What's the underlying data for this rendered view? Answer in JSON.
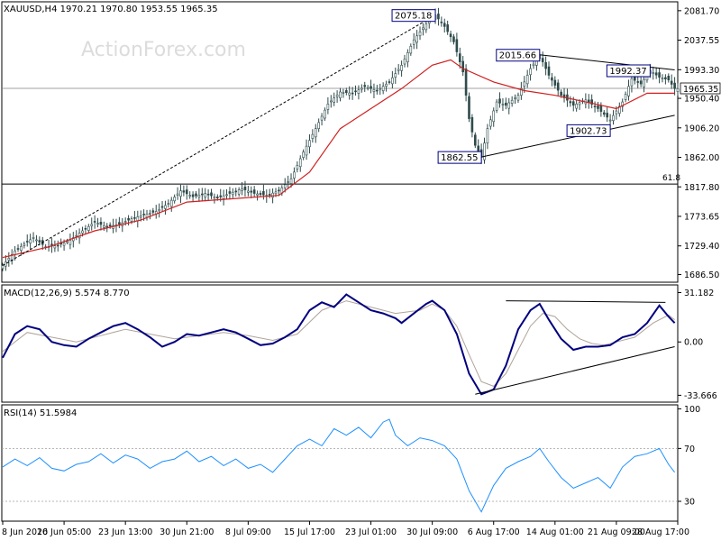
{
  "watermark": "ActionForex.com",
  "chart_data": [
    {
      "type": "candlestick",
      "header": "XAUUSD,H4  1970.21 1970.80 1953.55 1965.35",
      "symbol": "XAUUSD",
      "timeframe": "H4",
      "ohlc_last": {
        "open": 1970.21,
        "high": 1970.8,
        "low": 1953.55,
        "close": 1965.35
      },
      "current_price": 1965.35,
      "current_price_label": "1965.35",
      "ylim": [
        1675,
        2095
      ],
      "y_ticks": [
        2081.7,
        2037.55,
        1993.3,
        1950.4,
        1906.2,
        1862.0,
        1817.8,
        1773.65,
        1729.4,
        1686.5
      ],
      "y_tick_labels": [
        "2081.70",
        "2037.55",
        "1993.30",
        "1950.40",
        "1906.20",
        "1862.00",
        "1817.80",
        "1773.65",
        "1729.40",
        "1686.50"
      ],
      "price_path": [
        [
          0,
          1700
        ],
        [
          4,
          1722
        ],
        [
          10,
          1742
        ],
        [
          14,
          1728
        ],
        [
          18,
          1730
        ],
        [
          22,
          1738
        ],
        [
          26,
          1752
        ],
        [
          30,
          1765
        ],
        [
          34,
          1758
        ],
        [
          38,
          1762
        ],
        [
          42,
          1770
        ],
        [
          46,
          1776
        ],
        [
          50,
          1781
        ],
        [
          54,
          1793
        ],
        [
          58,
          1812
        ],
        [
          62,
          1803
        ],
        [
          66,
          1808
        ],
        [
          70,
          1801
        ],
        [
          74,
          1808
        ],
        [
          78,
          1815
        ],
        [
          82,
          1808
        ],
        [
          86,
          1805
        ],
        [
          90,
          1812
        ],
        [
          94,
          1830
        ],
        [
          98,
          1870
        ],
        [
          102,
          1905
        ],
        [
          106,
          1942
        ],
        [
          110,
          1960
        ],
        [
          114,
          1958
        ],
        [
          118,
          1968
        ],
        [
          122,
          1962
        ],
        [
          126,
          1975
        ],
        [
          130,
          2000
        ],
        [
          134,
          2038
        ],
        [
          138,
          2062
        ],
        [
          141,
          2075
        ],
        [
          144,
          2058
        ],
        [
          147,
          2035
        ],
        [
          150,
          1990
        ],
        [
          152,
          1920
        ],
        [
          154,
          1880
        ],
        [
          156,
          1862
        ],
        [
          158,
          1905
        ],
        [
          161,
          1945
        ],
        [
          164,
          1940
        ],
        [
          168,
          1955
        ],
        [
          172,
          1995
        ],
        [
          175,
          2015
        ],
        [
          178,
          1985
        ],
        [
          182,
          1955
        ],
        [
          186,
          1940
        ],
        [
          190,
          1948
        ],
        [
          194,
          1935
        ],
        [
          198,
          1918
        ],
        [
          202,
          1945
        ],
        [
          205,
          1980
        ],
        [
          208,
          1972
        ],
        [
          211,
          1992
        ],
        [
          214,
          1982
        ],
        [
          217,
          1978
        ],
        [
          219,
          1965
        ]
      ],
      "ema": [
        [
          0,
          1712
        ],
        [
          15,
          1728
        ],
        [
          30,
          1752
        ],
        [
          45,
          1768
        ],
        [
          60,
          1795
        ],
        [
          75,
          1800
        ],
        [
          90,
          1805
        ],
        [
          100,
          1840
        ],
        [
          110,
          1905
        ],
        [
          120,
          1935
        ],
        [
          130,
          1965
        ],
        [
          140,
          2000
        ],
        [
          146,
          2008
        ],
        [
          150,
          1995
        ],
        [
          160,
          1975
        ],
        [
          170,
          1962
        ],
        [
          180,
          1955
        ],
        [
          190,
          1945
        ],
        [
          200,
          1935
        ],
        [
          210,
          1958
        ],
        [
          219,
          1958
        ]
      ],
      "support_line": {
        "label": "61.8",
        "value": 1822
      },
      "horizontal_price_line": 1965.35,
      "trendlines": [
        {
          "style": "dashed",
          "from": [
            0,
            1700
          ],
          "to": [
            141,
            2075
          ]
        },
        {
          "style": "solid",
          "from": [
            156,
            1862.55
          ],
          "to": [
            219,
            1925
          ]
        },
        {
          "style": "solid",
          "from": [
            175,
            2015.66
          ],
          "to": [
            219,
            1993
          ]
        }
      ],
      "annotations": [
        {
          "label": "2075.18",
          "at": [
            141,
            2075.18
          ]
        },
        {
          "label": "2015.66",
          "at": [
            175,
            2015.66
          ]
        },
        {
          "label": "1992.37",
          "at": [
            211,
            1992.37
          ]
        },
        {
          "label": "1902.73",
          "at": [
            198,
            1902.73
          ]
        },
        {
          "label": "1862.55",
          "at": [
            156,
            1862.55
          ]
        }
      ]
    },
    {
      "type": "line",
      "title": "MACD(12,26,9) 5.574 8.770",
      "ylim": [
        -38,
        36
      ],
      "y_ticks": [
        31.182,
        0.0,
        -33.666
      ],
      "y_tick_labels": [
        "31.182",
        "0.00",
        "-33.666"
      ],
      "series": [
        {
          "name": "MACD",
          "points": [
            [
              0,
              -10
            ],
            [
              4,
              5
            ],
            [
              8,
              10
            ],
            [
              12,
              8
            ],
            [
              16,
              0
            ],
            [
              20,
              -2
            ],
            [
              24,
              -3
            ],
            [
              28,
              2
            ],
            [
              32,
              6
            ],
            [
              36,
              10
            ],
            [
              40,
              12
            ],
            [
              44,
              8
            ],
            [
              48,
              3
            ],
            [
              52,
              -3
            ],
            [
              56,
              0
            ],
            [
              60,
              5
            ],
            [
              64,
              4
            ],
            [
              68,
              6
            ],
            [
              72,
              8
            ],
            [
              76,
              6
            ],
            [
              80,
              2
            ],
            [
              84,
              -2
            ],
            [
              88,
              -1
            ],
            [
              92,
              3
            ],
            [
              96,
              8
            ],
            [
              100,
              20
            ],
            [
              104,
              25
            ],
            [
              108,
              22
            ],
            [
              112,
              30
            ],
            [
              116,
              25
            ],
            [
              120,
              20
            ],
            [
              124,
              18
            ],
            [
              128,
              15
            ],
            [
              130,
              12
            ],
            [
              134,
              18
            ],
            [
              138,
              24
            ],
            [
              140,
              26
            ],
            [
              144,
              20
            ],
            [
              148,
              5
            ],
            [
              152,
              -20
            ],
            [
              156,
              -33
            ],
            [
              160,
              -30
            ],
            [
              164,
              -15
            ],
            [
              168,
              8
            ],
            [
              172,
              20
            ],
            [
              175,
              24
            ],
            [
              178,
              14
            ],
            [
              182,
              2
            ],
            [
              186,
              -5
            ],
            [
              190,
              -3
            ],
            [
              194,
              -3
            ],
            [
              198,
              -2
            ],
            [
              202,
              3
            ],
            [
              206,
              5
            ],
            [
              210,
              12
            ],
            [
              214,
              23
            ],
            [
              217,
              16
            ],
            [
              219,
              12
            ]
          ]
        },
        {
          "name": "Signal",
          "points": [
            [
              0,
              -6
            ],
            [
              8,
              6
            ],
            [
              16,
              3
            ],
            [
              24,
              0
            ],
            [
              32,
              4
            ],
            [
              40,
              8
            ],
            [
              48,
              5
            ],
            [
              56,
              2
            ],
            [
              64,
              4
            ],
            [
              72,
              6
            ],
            [
              80,
              4
            ],
            [
              88,
              1
            ],
            [
              96,
              5
            ],
            [
              104,
              20
            ],
            [
              112,
              26
            ],
            [
              120,
              22
            ],
            [
              128,
              18
            ],
            [
              136,
              20
            ],
            [
              140,
              24
            ],
            [
              144,
              20
            ],
            [
              148,
              10
            ],
            [
              152,
              -8
            ],
            [
              156,
              -25
            ],
            [
              160,
              -28
            ],
            [
              164,
              -20
            ],
            [
              168,
              -5
            ],
            [
              172,
              10
            ],
            [
              176,
              18
            ],
            [
              180,
              16
            ],
            [
              184,
              8
            ],
            [
              188,
              2
            ],
            [
              192,
              -1
            ],
            [
              196,
              -2
            ],
            [
              200,
              0
            ],
            [
              206,
              3
            ],
            [
              212,
              12
            ],
            [
              217,
              17
            ],
            [
              219,
              14
            ]
          ]
        }
      ],
      "trendlines": [
        {
          "style": "solid",
          "from": [
            154,
            -33
          ],
          "to": [
            219,
            -3
          ]
        },
        {
          "style": "solid",
          "from": [
            164,
            26
          ],
          "to": [
            216,
            25
          ]
        }
      ]
    },
    {
      "type": "line",
      "title": "RSI(14) 51.5984",
      "ylim": [
        15,
        103
      ],
      "y_ticks": [
        100,
        70,
        30
      ],
      "y_tick_labels": [
        "100",
        "70",
        "30"
      ],
      "levels": [
        70,
        30
      ],
      "series": [
        {
          "name": "RSI",
          "points": [
            [
              0,
              56
            ],
            [
              4,
              62
            ],
            [
              8,
              57
            ],
            [
              12,
              63
            ],
            [
              16,
              55
            ],
            [
              20,
              53
            ],
            [
              24,
              58
            ],
            [
              28,
              60
            ],
            [
              32,
              66
            ],
            [
              36,
              59
            ],
            [
              40,
              65
            ],
            [
              44,
              62
            ],
            [
              48,
              55
            ],
            [
              52,
              60
            ],
            [
              56,
              62
            ],
            [
              60,
              68
            ],
            [
              64,
              60
            ],
            [
              68,
              64
            ],
            [
              72,
              57
            ],
            [
              76,
              62
            ],
            [
              80,
              55
            ],
            [
              84,
              58
            ],
            [
              88,
              52
            ],
            [
              92,
              62
            ],
            [
              96,
              72
            ],
            [
              100,
              77
            ],
            [
              104,
              72
            ],
            [
              108,
              85
            ],
            [
              112,
              80
            ],
            [
              116,
              86
            ],
            [
              120,
              78
            ],
            [
              124,
              90
            ],
            [
              126,
              92
            ],
            [
              128,
              80
            ],
            [
              132,
              72
            ],
            [
              136,
              78
            ],
            [
              140,
              76
            ],
            [
              144,
              72
            ],
            [
              148,
              62
            ],
            [
              152,
              38
            ],
            [
              156,
              22
            ],
            [
              160,
              42
            ],
            [
              164,
              55
            ],
            [
              168,
              60
            ],
            [
              172,
              64
            ],
            [
              175,
              70
            ],
            [
              178,
              60
            ],
            [
              182,
              48
            ],
            [
              186,
              40
            ],
            [
              190,
              44
            ],
            [
              194,
              48
            ],
            [
              198,
              40
            ],
            [
              202,
              56
            ],
            [
              206,
              64
            ],
            [
              210,
              66
            ],
            [
              214,
              70
            ],
            [
              217,
              58
            ],
            [
              219,
              52
            ]
          ]
        }
      ]
    }
  ],
  "x_tick_labels": [
    "8 Jun 2020",
    "16 Jun 05:00",
    "23 Jun 13:00",
    "30 Jun 21:00",
    "8 Jul 09:00",
    "15 Jul 17:00",
    "23 Jul 01:00",
    "30 Jul 09:00",
    "6 Aug 17:00",
    "14 Aug 01:00",
    "21 Aug 09:00",
    "28 Aug 17:00"
  ],
  "x_tick_index": [
    0,
    20,
    40,
    60,
    80,
    100,
    120,
    140,
    160,
    180,
    200,
    220
  ],
  "colors": {
    "candle": "#2e4a4a",
    "ema": "#d11f1f",
    "macd": "#00007f",
    "signal": "#b0a49a",
    "rsi": "#1e90ff",
    "border": "#000000",
    "label_border": "#000080"
  }
}
